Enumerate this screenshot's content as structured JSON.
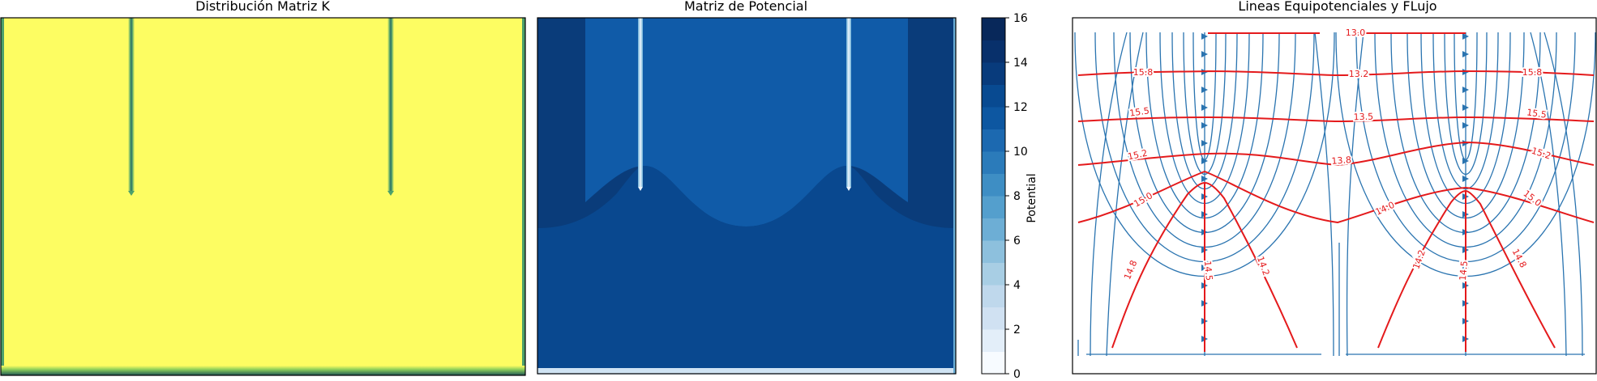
{
  "chart_data": [
    {
      "type": "heatmap",
      "title": "Distribución Matriz K",
      "xlabel": "",
      "ylabel": "",
      "colormap": "viridis",
      "colors": {
        "high": "#fdfd62",
        "low": "#2f6b63",
        "edge": "#1d5456"
      },
      "regions": [
        {
          "name": "",
          "value": "high"
        },
        {
          "name": "",
          "value": "low"
        }
      ]
    },
    {
      "type": "heatmap",
      "title": "Matriz de Potencial",
      "xlabel": "",
      "ylabel": "",
      "colormap": "Blues",
      "colorbar": {
        "label": "Potential",
        "ticks": [
          "0",
          "2",
          "4",
          "6",
          "8",
          "10",
          "12",
          "14",
          "16"
        ],
        "min": 0,
        "max": 16,
        "levels": 16,
        "colors": [
          "#f7fbff",
          "#e3eef9",
          "#d0e1f2",
          "#bfd8ec",
          "#a8cee4",
          "#8dc0dd",
          "#6daed5",
          "#549fcd",
          "#3e8ec4",
          "#2b7bba",
          "#1c69b0",
          "#0d57a1",
          "#084a91",
          "#083b7c",
          "#08306b",
          "#08285a"
        ]
      },
      "colors": {
        "top": "#0a3c7a",
        "mid": "#105ba8",
        "bottom": "#09488f",
        "cutoff": "#cfe3f3"
      }
    },
    {
      "type": "line",
      "title": "Lineas Equipotenciales y FLujo",
      "xlabel": "",
      "ylabel": "",
      "contour_labels": [
        "13.0",
        "13.2",
        "15.8",
        "15.8",
        "13.5",
        "15.5",
        "15.5",
        "13.8",
        "15.2",
        "15.2",
        "14.0",
        "15.0",
        "15.0",
        "14.8",
        "14.5",
        "14.2",
        "14.2",
        "14.5",
        "14.8"
      ],
      "colors": {
        "equipotential": "#e41a1c",
        "streamline": "#2a74b0"
      }
    }
  ]
}
